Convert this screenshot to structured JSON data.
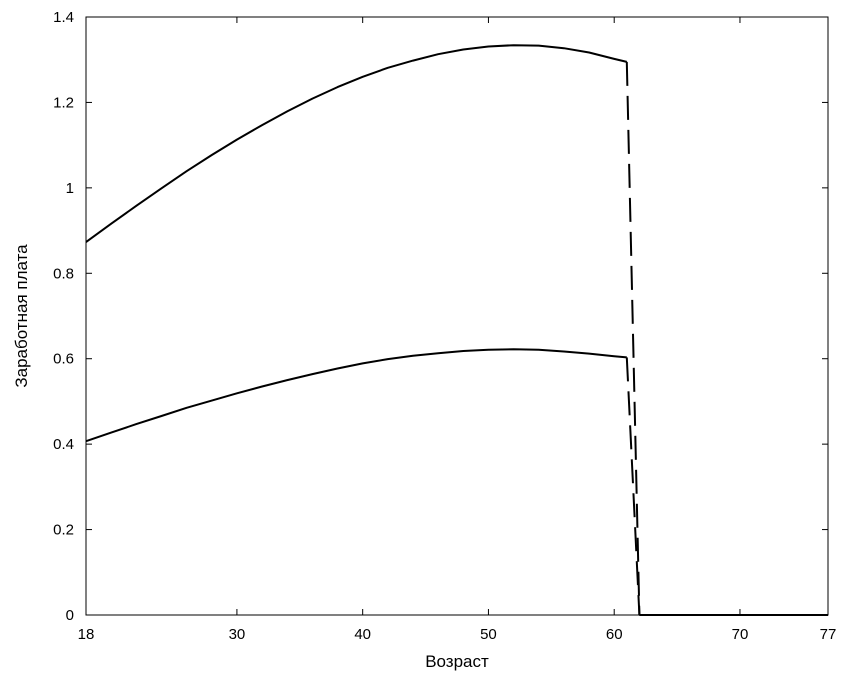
{
  "chart_data": {
    "type": "line",
    "title": "",
    "xlabel": "Возраст",
    "ylabel": "Заработная плата",
    "xlim": [
      18,
      77
    ],
    "ylim": [
      0,
      1.4
    ],
    "x_ticks": [
      18,
      30,
      40,
      50,
      60,
      70,
      77
    ],
    "x_tick_labels": [
      "18",
      "30",
      "40",
      "50",
      "60",
      "70",
      "77"
    ],
    "y_ticks": [
      0,
      0.2,
      0.4,
      0.6,
      0.8,
      1,
      1.2,
      1.4
    ],
    "y_tick_labels": [
      "0",
      "0.2",
      "0.4",
      "0.6",
      "0.8",
      "1",
      "1.2",
      "1.4"
    ],
    "grid": false,
    "legend": "none",
    "series": [
      {
        "x": [
          18,
          20,
          22,
          24,
          26,
          28,
          30,
          32,
          34,
          36,
          38,
          40,
          42,
          44,
          46,
          48,
          50,
          52,
          54,
          56,
          58,
          60,
          61,
          62,
          77
        ],
        "y": [
          0.873,
          0.916,
          0.958,
          0.999,
          1.039,
          1.077,
          1.113,
          1.147,
          1.179,
          1.209,
          1.236,
          1.26,
          1.281,
          1.298,
          1.313,
          1.324,
          1.331,
          1.334,
          1.333,
          1.327,
          1.317,
          1.302,
          1.295,
          0,
          0
        ],
        "style": "solid-then-dashed-drop"
      },
      {
        "x": [
          18,
          20,
          22,
          24,
          26,
          28,
          30,
          32,
          34,
          36,
          38,
          40,
          42,
          44,
          46,
          48,
          50,
          52,
          54,
          56,
          58,
          60,
          61,
          62,
          77
        ],
        "y": [
          0.407,
          0.427,
          0.447,
          0.466,
          0.485,
          0.502,
          0.519,
          0.535,
          0.55,
          0.564,
          0.577,
          0.589,
          0.599,
          0.607,
          0.613,
          0.618,
          0.621,
          0.622,
          0.621,
          0.617,
          0.612,
          0.606,
          0.603,
          0,
          0
        ],
        "style": "solid-then-dashed-drop"
      }
    ]
  }
}
